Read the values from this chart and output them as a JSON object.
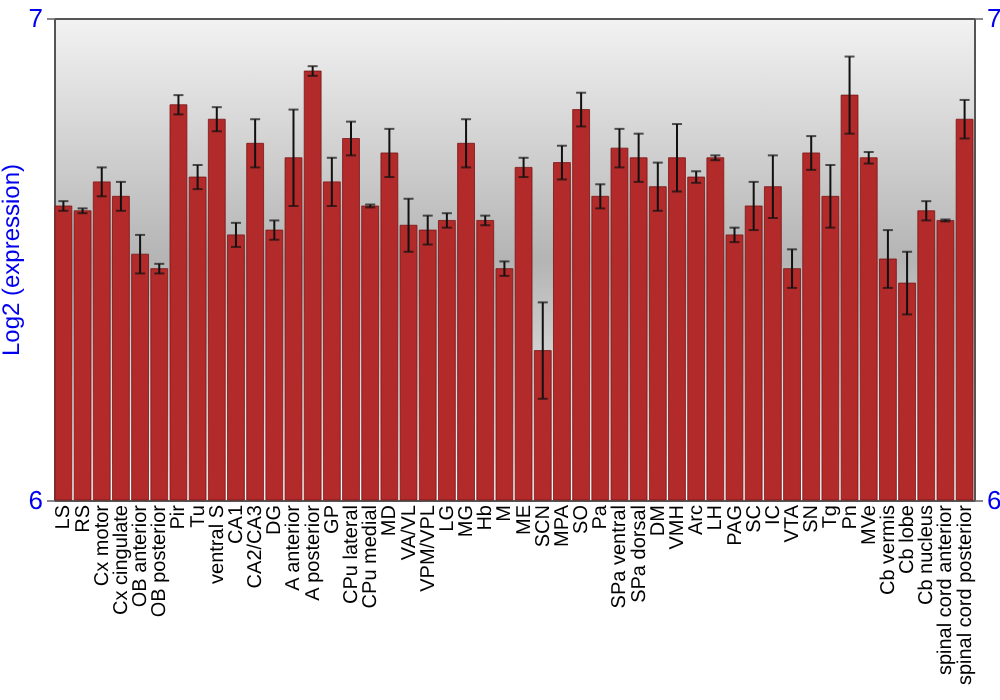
{
  "chart_data": {
    "type": "bar",
    "ylabel": "Log2 (expression)",
    "categories": [
      "LS",
      "RS",
      "Cx motor",
      "Cx cingulate",
      "OB anterior",
      "OB posterior",
      "Pir",
      "Tu",
      "ventral S",
      "CA1",
      "CA2/CA3",
      "DG",
      "A anterior",
      "A posterior",
      "GP",
      "CPu lateral",
      "CPu medial",
      "MD",
      "VA/VL",
      "VPM/VPL",
      "LG",
      "MG",
      "Hb",
      "M",
      "ME",
      "SCN",
      "MPA",
      "SO",
      "Pa",
      "SPa ventral",
      "SPa dorsal",
      "DM",
      "VMH",
      "Arc",
      "LH",
      "PAG",
      "SC",
      "IC",
      "VTA",
      "SN",
      "Tg",
      "Pn",
      "MVe",
      "Cb vermis",
      "Cb lobe",
      "Cb nucleus",
      "spinal cord anterior",
      "spinal cord posterior"
    ],
    "series": [
      {
        "color": "#b22a2a",
        "values": [
          6.61,
          6.6,
          6.66,
          6.63,
          6.51,
          6.48,
          6.82,
          6.67,
          6.79,
          6.55,
          6.74,
          6.56,
          6.71,
          6.89,
          6.66,
          6.75,
          6.61,
          6.72,
          6.57,
          6.56,
          6.58,
          6.74,
          6.58,
          6.48,
          6.69,
          6.31,
          6.7,
          6.81,
          6.63,
          6.73,
          6.71,
          6.65,
          6.71,
          6.67,
          6.71,
          6.55,
          6.61,
          6.65,
          6.48,
          6.72,
          6.63,
          6.84,
          6.71,
          6.5,
          6.45,
          6.6,
          6.58,
          6.79
        ],
        "errors": [
          0.01,
          0.005,
          0.03,
          0.03,
          0.04,
          0.01,
          0.02,
          0.025,
          0.025,
          0.025,
          0.05,
          0.02,
          0.1,
          0.01,
          0.05,
          0.035,
          0.003,
          0.05,
          0.055,
          0.03,
          0.015,
          0.05,
          0.01,
          0.015,
          0.02,
          0.1,
          0.035,
          0.035,
          0.025,
          0.04,
          0.05,
          0.05,
          0.07,
          0.012,
          0.005,
          0.015,
          0.05,
          0.065,
          0.04,
          0.035,
          0.065,
          0.08,
          0.012,
          0.06,
          0.065,
          0.02,
          0.002,
          0.04
        ]
      }
    ],
    "ylim": [
      6,
      7
    ],
    "yticks": [
      6,
      7
    ],
    "y2lim": [
      6,
      7
    ],
    "y2ticks": [
      6,
      7
    ],
    "grid": false
  }
}
